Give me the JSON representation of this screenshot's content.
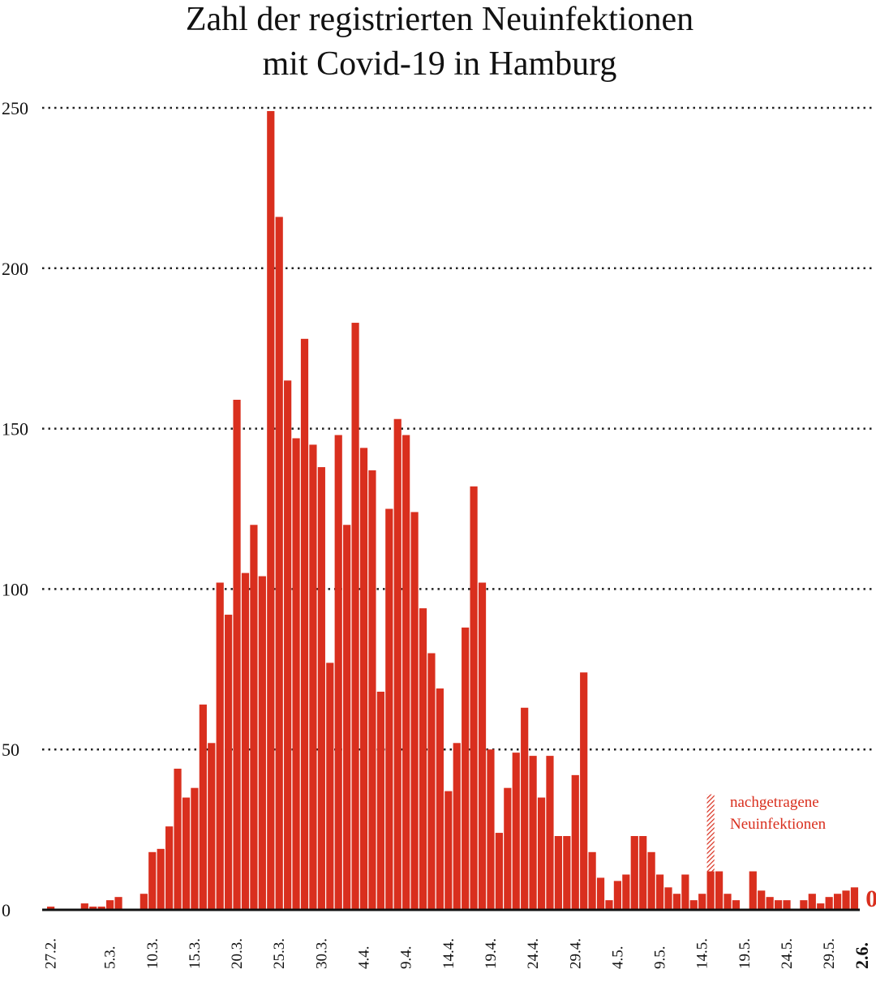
{
  "chart_data": {
    "type": "bar",
    "title_lines": [
      "Zahl der registrierten Neuinfektionen",
      "mit Covid-19 in Hamburg"
    ],
    "xlabel": "",
    "ylabel": "",
    "ylim": [
      0,
      250
    ],
    "yticks": [
      0,
      50,
      100,
      150,
      200,
      250
    ],
    "grid": true,
    "start_date": "27.2.",
    "end_date": "2.6.",
    "xtick_labels": [
      {
        "index": 0,
        "label": "27.2."
      },
      {
        "index": 7,
        "label": "5.3."
      },
      {
        "index": 12,
        "label": "10.3."
      },
      {
        "index": 17,
        "label": "15.3."
      },
      {
        "index": 22,
        "label": "20.3."
      },
      {
        "index": 27,
        "label": "25.3."
      },
      {
        "index": 32,
        "label": "30.3."
      },
      {
        "index": 37,
        "label": "4.4."
      },
      {
        "index": 42,
        "label": "9.4."
      },
      {
        "index": 47,
        "label": "14.4."
      },
      {
        "index": 52,
        "label": "19.4."
      },
      {
        "index": 57,
        "label": "24.4."
      },
      {
        "index": 62,
        "label": "29.4."
      },
      {
        "index": 67,
        "label": "4.5."
      },
      {
        "index": 72,
        "label": "9.5."
      },
      {
        "index": 77,
        "label": "14.5."
      },
      {
        "index": 82,
        "label": "19.5."
      },
      {
        "index": 87,
        "label": "24.5."
      },
      {
        "index": 92,
        "label": "29.5."
      },
      {
        "index": 96,
        "label": "2.6.",
        "bold": true
      }
    ],
    "values": [
      1,
      0,
      0,
      0,
      2,
      1,
      1,
      3,
      4,
      0,
      0,
      5,
      18,
      19,
      26,
      44,
      35,
      38,
      64,
      52,
      102,
      92,
      159,
      105,
      120,
      104,
      249,
      216,
      165,
      147,
      178,
      145,
      138,
      77,
      148,
      120,
      183,
      144,
      137,
      68,
      125,
      153,
      148,
      124,
      94,
      80,
      69,
      37,
      52,
      88,
      132,
      102,
      50,
      24,
      38,
      49,
      63,
      48,
      35,
      48,
      23,
      23,
      42,
      74,
      18,
      10,
      3,
      9,
      11,
      23,
      23,
      18,
      11,
      7,
      5,
      11,
      3,
      5,
      12,
      12,
      5,
      3,
      0,
      12,
      6,
      4,
      3,
      3,
      0,
      3,
      5,
      2,
      4,
      5,
      6,
      7,
      0
    ],
    "late_reported": {
      "index": 78,
      "extra_value": 24,
      "label_lines": [
        "nachgetragene",
        "Neuinfektionen"
      ]
    },
    "last_value_label": "0",
    "bar_color": "#d92f1e"
  }
}
